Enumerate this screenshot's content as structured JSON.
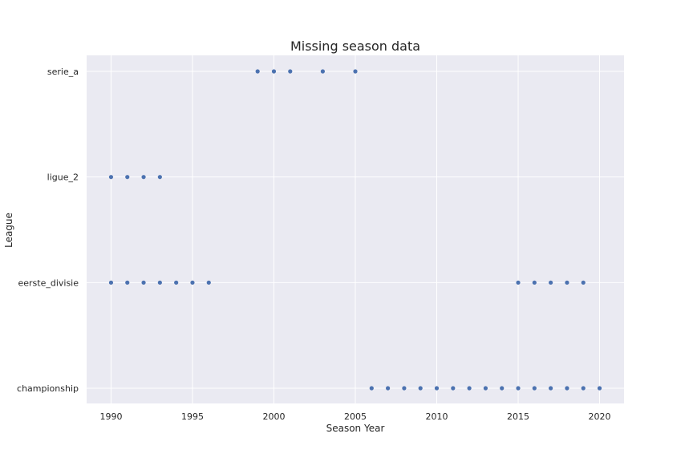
{
  "chart_data": {
    "type": "scatter",
    "title": "Missing season data",
    "xlabel": "Season Year",
    "ylabel": "League",
    "xlim": [
      1988.5,
      2021.5
    ],
    "x_ticks": [
      1990,
      1995,
      2000,
      2005,
      2010,
      2015,
      2020
    ],
    "categories": [
      "championship",
      "eerste_divisie",
      "ligue_2",
      "serie_a"
    ],
    "grid": true,
    "background": "#eaeaf2",
    "grid_color": "#ffffff",
    "marker_color": "#4c72b0",
    "points": [
      {
        "league": "serie_a",
        "years": [
          1999,
          2000,
          2001,
          2003,
          2005
        ]
      },
      {
        "league": "ligue_2",
        "years": [
          1990,
          1991,
          1992,
          1993
        ]
      },
      {
        "league": "eerste_divisie",
        "years": [
          1990,
          1991,
          1992,
          1993,
          1994,
          1995,
          1996,
          2015,
          2016,
          2017,
          2018,
          2019
        ]
      },
      {
        "league": "championship",
        "years": [
          2006,
          2007,
          2008,
          2009,
          2010,
          2011,
          2012,
          2013,
          2014,
          2015,
          2016,
          2017,
          2018,
          2019,
          2020
        ]
      }
    ]
  }
}
